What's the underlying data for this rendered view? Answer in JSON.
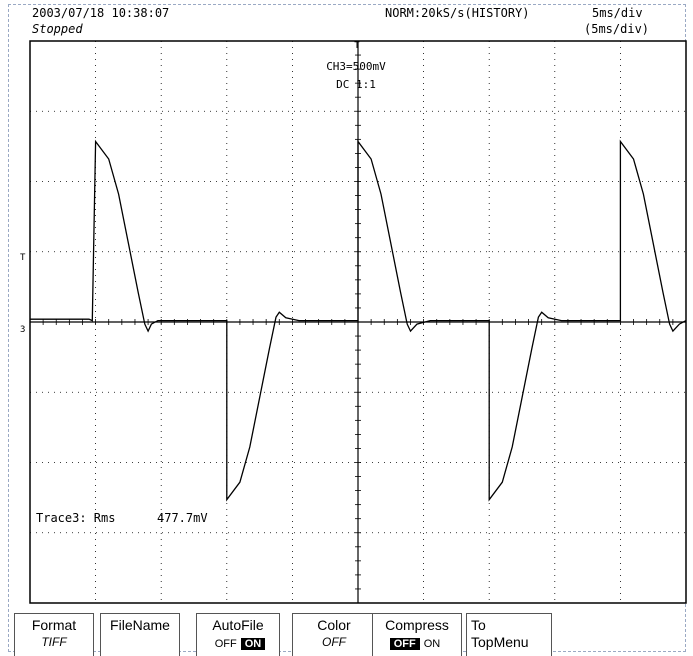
{
  "header": {
    "datetime": "2003/07/18  10:38:07",
    "status": "Stopped",
    "mode": "NORM:20kS/s(HISTORY)",
    "timebase": "5ms/div",
    "timebase_secondary": "(5ms/div)"
  },
  "channel": {
    "range": "CH3=500mV",
    "coupling": "DC  1:1"
  },
  "measurement": {
    "label": "Trace3: Rms",
    "value": "477.7mV"
  },
  "markers": {
    "trigger_top": "T",
    "trigger_left": "T",
    "ground_left": "3"
  },
  "softkeys": [
    {
      "label": "Format",
      "sub": "TIFF"
    },
    {
      "label": "FileName",
      "sub": ""
    },
    {
      "label": "AutoFile",
      "off": "OFF",
      "on": "ON",
      "active": "ON"
    },
    {
      "label": "Color",
      "sub": "OFF"
    },
    {
      "label": "Compress",
      "off": "OFF",
      "on": "ON",
      "active": "OFF"
    },
    {
      "label": "To",
      "sub": "TopMenu"
    }
  ],
  "chart_data": {
    "type": "line",
    "grid": true,
    "x_divisions": 10,
    "y_divisions": 8,
    "series": [
      {
        "values_div": [
          [
            0.0,
            0.02
          ],
          [
            0.9,
            0.02
          ],
          [
            0.95,
            0.0
          ],
          [
            1.0,
            2.55
          ],
          [
            1.2,
            2.3
          ],
          [
            1.35,
            1.8
          ],
          [
            1.5,
            1.1
          ],
          [
            1.65,
            0.4
          ],
          [
            1.75,
            -0.05
          ],
          [
            1.8,
            -0.15
          ],
          [
            1.85,
            -0.05
          ],
          [
            1.95,
            0.0
          ],
          [
            2.2,
            0.0
          ],
          [
            2.9,
            0.0
          ],
          [
            3.0,
            0.0
          ],
          [
            3.0,
            -2.55
          ],
          [
            3.2,
            -2.3
          ],
          [
            3.35,
            -1.8
          ],
          [
            3.5,
            -1.1
          ],
          [
            3.65,
            -0.4
          ],
          [
            3.75,
            0.05
          ],
          [
            3.8,
            0.12
          ],
          [
            3.9,
            0.04
          ],
          [
            4.1,
            0.0
          ],
          [
            5.0,
            0.0
          ],
          [
            5.0,
            2.55
          ],
          [
            5.2,
            2.3
          ],
          [
            5.35,
            1.8
          ],
          [
            5.5,
            1.1
          ],
          [
            5.65,
            0.4
          ],
          [
            5.75,
            -0.05
          ],
          [
            5.8,
            -0.15
          ],
          [
            5.9,
            -0.05
          ],
          [
            6.1,
            0.0
          ],
          [
            6.95,
            0.0
          ],
          [
            7.0,
            0.0
          ],
          [
            7.0,
            -2.55
          ],
          [
            7.2,
            -2.3
          ],
          [
            7.35,
            -1.8
          ],
          [
            7.5,
            -1.1
          ],
          [
            7.65,
            -0.4
          ],
          [
            7.75,
            0.05
          ],
          [
            7.8,
            0.12
          ],
          [
            7.9,
            0.04
          ],
          [
            8.1,
            0.0
          ],
          [
            8.95,
            0.0
          ],
          [
            9.0,
            0.0
          ],
          [
            9.0,
            2.55
          ],
          [
            9.2,
            2.3
          ],
          [
            9.35,
            1.8
          ],
          [
            9.5,
            1.1
          ],
          [
            9.65,
            0.4
          ],
          [
            9.75,
            -0.05
          ],
          [
            9.8,
            -0.15
          ],
          [
            9.9,
            -0.05
          ],
          [
            10.0,
            0.0
          ]
        ]
      }
    ]
  }
}
